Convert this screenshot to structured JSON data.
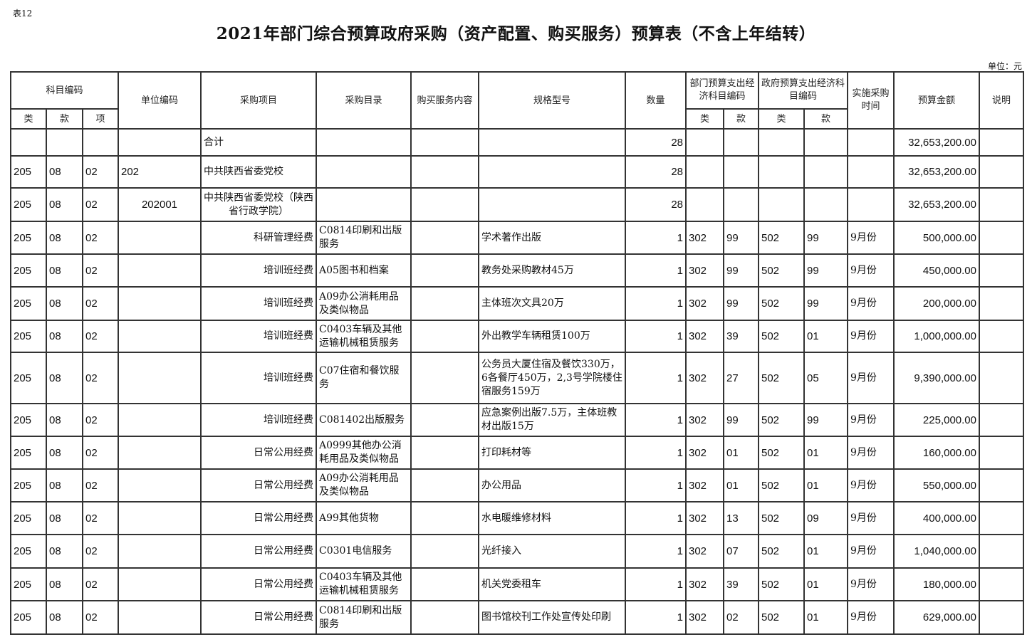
{
  "table_no": "表12",
  "title": "2021年部门综合预算政府采购（资产配置、购买服务）预算表（不含上年结转）",
  "unit": "单位：元",
  "headers": {
    "subject_code": "科目编码",
    "lei": "类",
    "kuan": "款",
    "xiang": "项",
    "unit_code": "单位编码",
    "project": "采购项目",
    "catalog": "采购目录",
    "service": "购买服务内容",
    "spec": "规格型号",
    "qty": "数量",
    "dept_econ": "部门预算支出经济科目编码",
    "gov_econ": "政府预算支出经济科目编码",
    "time": "实施采购时间",
    "amount": "预算金额",
    "note": "说明"
  },
  "rows": [
    {
      "lei": "",
      "kuan": "",
      "xiang": "",
      "unit_code": "",
      "project": "合计",
      "catalog": "",
      "service": "",
      "spec": "",
      "qty": "28",
      "d_lei": "",
      "d_kuan": "",
      "g_lei": "",
      "g_kuan": "",
      "time": "",
      "amount": "32,653,200.00",
      "note": ""
    },
    {
      "lei": "205",
      "kuan": "08",
      "xiang": "02",
      "unit_code": "202",
      "project": "中共陕西省委党校",
      "catalog": "",
      "service": "",
      "spec": "",
      "qty": "28",
      "d_lei": "",
      "d_kuan": "",
      "g_lei": "",
      "g_kuan": "",
      "time": "",
      "amount": "32,653,200.00",
      "note": ""
    },
    {
      "lei": "205",
      "kuan": "08",
      "xiang": "02",
      "unit_code": "202001",
      "project": "中共陕西省委党校（陕西省行政学院）",
      "catalog": "",
      "service": "",
      "spec": "",
      "qty": "28",
      "d_lei": "",
      "d_kuan": "",
      "g_lei": "",
      "g_kuan": "",
      "time": "",
      "amount": "32,653,200.00",
      "note": ""
    },
    {
      "lei": "205",
      "kuan": "08",
      "xiang": "02",
      "unit_code": "",
      "project": "科研管理经费",
      "catalog": "C0814印刷和出版服务",
      "service": "",
      "spec": "学术著作出版",
      "qty": "1",
      "d_lei": "302",
      "d_kuan": "99",
      "g_lei": "502",
      "g_kuan": "99",
      "time": "9月份",
      "amount": "500,000.00",
      "note": ""
    },
    {
      "lei": "205",
      "kuan": "08",
      "xiang": "02",
      "unit_code": "",
      "project": "培训班经费",
      "catalog": "A05图书和档案",
      "service": "",
      "spec": "教务处采购教材45万",
      "qty": "1",
      "d_lei": "302",
      "d_kuan": "99",
      "g_lei": "502",
      "g_kuan": "99",
      "time": "9月份",
      "amount": "450,000.00",
      "note": ""
    },
    {
      "lei": "205",
      "kuan": "08",
      "xiang": "02",
      "unit_code": "",
      "project": "培训班经费",
      "catalog": "A09办公消耗用品及类似物品",
      "service": "",
      "spec": "主体班次文具20万",
      "qty": "1",
      "d_lei": "302",
      "d_kuan": "99",
      "g_lei": "502",
      "g_kuan": "99",
      "time": "9月份",
      "amount": "200,000.00",
      "note": ""
    },
    {
      "lei": "205",
      "kuan": "08",
      "xiang": "02",
      "unit_code": "",
      "project": "培训班经费",
      "catalog": "C0403车辆及其他运输机械租赁服务",
      "service": "",
      "spec": "外出教学车辆租赁100万",
      "qty": "1",
      "d_lei": "302",
      "d_kuan": "39",
      "g_lei": "502",
      "g_kuan": "01",
      "time": "9月份",
      "amount": "1,000,000.00",
      "note": ""
    },
    {
      "lei": "205",
      "kuan": "08",
      "xiang": "02",
      "unit_code": "",
      "project": "培训班经费",
      "catalog": "C07住宿和餐饮服务",
      "service": "",
      "spec": "公务员大厦住宿及餐饮330万，6各餐厅450万，2,3号学院楼住宿服务159万",
      "qty": "1",
      "d_lei": "302",
      "d_kuan": "27",
      "g_lei": "502",
      "g_kuan": "05",
      "time": "9月份",
      "amount": "9,390,000.00",
      "note": ""
    },
    {
      "lei": "205",
      "kuan": "08",
      "xiang": "02",
      "unit_code": "",
      "project": "培训班经费",
      "catalog": "C081402出版服务",
      "service": "",
      "spec": "应急案例出版7.5万，主体班教材出版15万",
      "qty": "1",
      "d_lei": "302",
      "d_kuan": "99",
      "g_lei": "502",
      "g_kuan": "99",
      "time": "9月份",
      "amount": "225,000.00",
      "note": ""
    },
    {
      "lei": "205",
      "kuan": "08",
      "xiang": "02",
      "unit_code": "",
      "project": "日常公用经费",
      "catalog": "A0999其他办公消耗用品及类似物品",
      "service": "",
      "spec": "打印耗材等",
      "qty": "1",
      "d_lei": "302",
      "d_kuan": "01",
      "g_lei": "502",
      "g_kuan": "01",
      "time": "9月份",
      "amount": "160,000.00",
      "note": ""
    },
    {
      "lei": "205",
      "kuan": "08",
      "xiang": "02",
      "unit_code": "",
      "project": "日常公用经费",
      "catalog": "A09办公消耗用品及类似物品",
      "service": "",
      "spec": "办公用品",
      "qty": "1",
      "d_lei": "302",
      "d_kuan": "01",
      "g_lei": "502",
      "g_kuan": "01",
      "time": "9月份",
      "amount": "550,000.00",
      "note": ""
    },
    {
      "lei": "205",
      "kuan": "08",
      "xiang": "02",
      "unit_code": "",
      "project": "日常公用经费",
      "catalog": "A99其他货物",
      "service": "",
      "spec": "水电暖维修材料",
      "qty": "1",
      "d_lei": "302",
      "d_kuan": "13",
      "g_lei": "502",
      "g_kuan": "09",
      "time": "9月份",
      "amount": "400,000.00",
      "note": ""
    },
    {
      "lei": "205",
      "kuan": "08",
      "xiang": "02",
      "unit_code": "",
      "project": "日常公用经费",
      "catalog": "C0301电信服务",
      "service": "",
      "spec": "光纤接入",
      "qty": "1",
      "d_lei": "302",
      "d_kuan": "07",
      "g_lei": "502",
      "g_kuan": "01",
      "time": "9月份",
      "amount": "1,040,000.00",
      "note": ""
    },
    {
      "lei": "205",
      "kuan": "08",
      "xiang": "02",
      "unit_code": "",
      "project": "日常公用经费",
      "catalog": "C0403车辆及其他运输机械租赁服务",
      "service": "",
      "spec": "机关党委租车",
      "qty": "1",
      "d_lei": "302",
      "d_kuan": "39",
      "g_lei": "502",
      "g_kuan": "01",
      "time": "9月份",
      "amount": "180,000.00",
      "note": ""
    },
    {
      "lei": "205",
      "kuan": "08",
      "xiang": "02",
      "unit_code": "",
      "project": "日常公用经费",
      "catalog": "C0814印刷和出版服务",
      "service": "",
      "spec": "图书馆校刊工作处宣传处印刷",
      "qty": "1",
      "d_lei": "302",
      "d_kuan": "02",
      "g_lei": "502",
      "g_kuan": "01",
      "time": "9月份",
      "amount": "629,000.00",
      "note": ""
    }
  ]
}
